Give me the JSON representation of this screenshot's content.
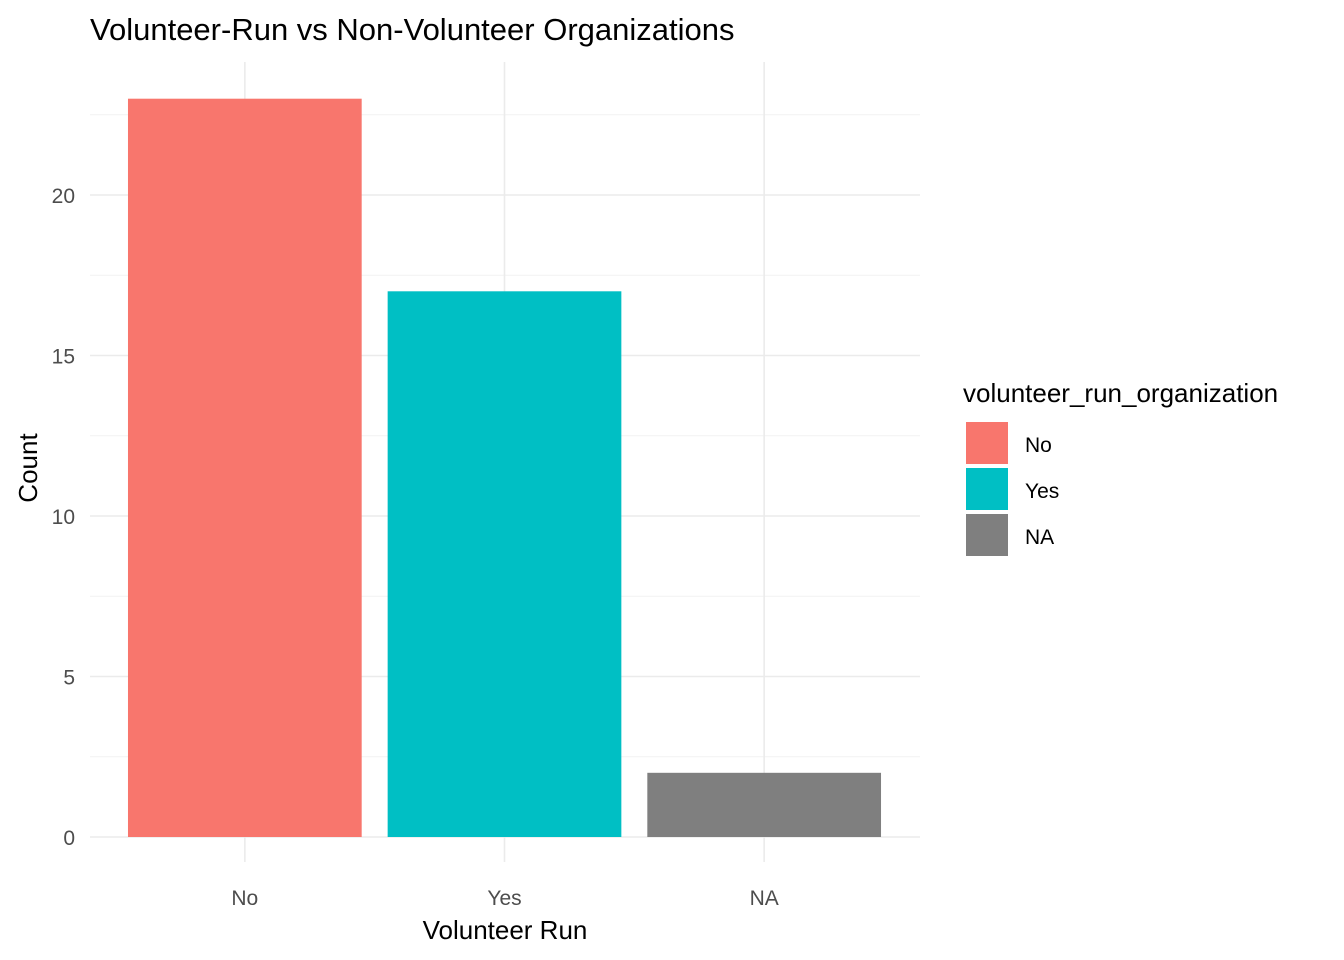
{
  "chart_data": {
    "type": "bar",
    "title": "Volunteer-Run vs Non-Volunteer Organizations",
    "xlabel": "Volunteer Run",
    "ylabel": "Count",
    "categories": [
      "No",
      "Yes",
      "NA"
    ],
    "values": [
      23,
      17,
      2
    ],
    "colors": [
      "#F8766D",
      "#00BFC4",
      "#7F7F7F"
    ],
    "ylim": [
      0,
      24
    ],
    "yticks": [
      0,
      5,
      10,
      15,
      20
    ],
    "grid": true,
    "legend": {
      "title": "volunteer_run_organization",
      "placement": "right",
      "entries": [
        "No",
        "Yes",
        "NA"
      ]
    }
  }
}
